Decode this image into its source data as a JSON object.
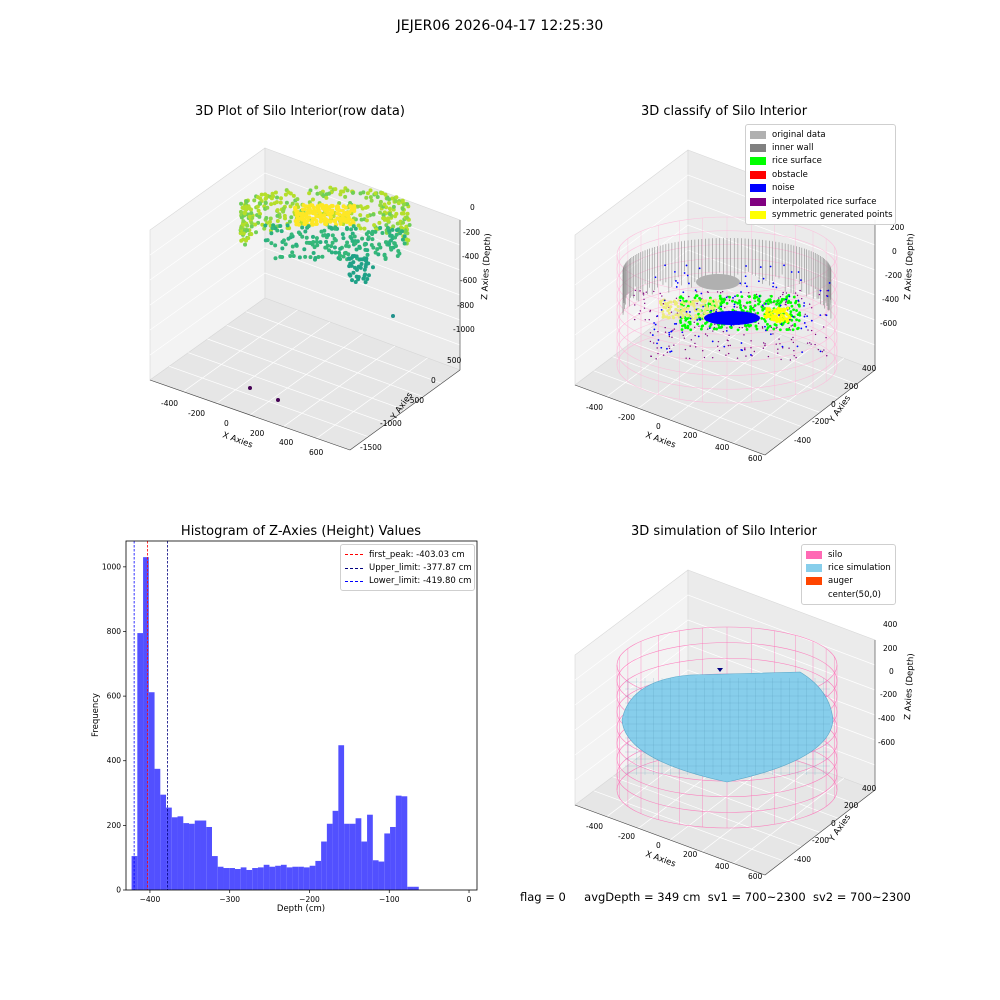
{
  "suptitle": "JEJER06 2026-04-17 12:25:30",
  "panels": {
    "raw": {
      "title": "3D Plot of Silo Interior(row data)",
      "xlabel": "X Axies",
      "ylabel": "Y Axies",
      "zlabel": "Z Axies (Depth)",
      "xticks": [
        "-400",
        "-200",
        "0",
        "200",
        "400",
        "600"
      ],
      "yticks": [
        "-1500",
        "-1000",
        "-500",
        "0",
        "500"
      ],
      "zticks": [
        "-1000",
        "-800",
        "-600",
        "-400",
        "-200",
        "0"
      ]
    },
    "classify": {
      "title": "3D classify of Silo Interior",
      "xlabel": "X Axies",
      "ylabel": "Y Axies",
      "zlabel": "Z Axies (Depth)",
      "xticks": [
        "-400",
        "-200",
        "0",
        "200",
        "400",
        "600"
      ],
      "yticks": [
        "-400",
        "-200",
        "0",
        "200",
        "400"
      ],
      "zticks": [
        "-600",
        "-400",
        "-200",
        "0",
        "200"
      ],
      "legend": [
        {
          "label": "original data",
          "color": "#b0b0b0"
        },
        {
          "label": "inner wall",
          "color": "#808080"
        },
        {
          "label": "rice surface",
          "color": "#00ff00"
        },
        {
          "label": "obstacle",
          "color": "#ff0000"
        },
        {
          "label": "noise",
          "color": "#0000ff"
        },
        {
          "label": "interpolated rice surface",
          "color": "#800080"
        },
        {
          "label": "symmetric generated points",
          "color": "#ffff00"
        }
      ]
    },
    "simulation": {
      "title": "3D simulation of Silo Interior",
      "xlabel": "X Axies",
      "ylabel": "Y Axies",
      "zlabel": "Z Axies (Depth)",
      "xticks": [
        "-400",
        "-200",
        "0",
        "200",
        "400",
        "600"
      ],
      "yticks": [
        "-400",
        "-200",
        "0",
        "200",
        "400"
      ],
      "zticks": [
        "-600",
        "-400",
        "-200",
        "0",
        "200",
        "400"
      ],
      "legend": [
        {
          "label": "silo",
          "color": "#ff69b4"
        },
        {
          "label": "rice simulation",
          "color": "#87ceeb"
        },
        {
          "label": "auger",
          "color": "#ff4500"
        },
        {
          "label": "center(50,0)",
          "color": ""
        }
      ]
    }
  },
  "colors": {
    "hist_bar": "#4f4cff",
    "first_peak": "#ff0000",
    "upper": "#000080",
    "lower": "#0000ff",
    "silo": "#ff69b4",
    "rice": "#87ceeb"
  },
  "chart_data": {
    "type": "bar",
    "title": "Histogram of Z-Axies (Height) Values",
    "xlabel": "Depth (cm)",
    "ylabel": "Frequency",
    "xlim": [
      -430,
      10
    ],
    "ylim": [
      0,
      1080
    ],
    "xticks": [
      -400,
      -300,
      -200,
      -100,
      0
    ],
    "yticks": [
      0,
      200,
      400,
      600,
      800,
      1000
    ],
    "bin_start": -423,
    "bin_width": 7.2,
    "values": [
      105,
      795,
      1030,
      612,
      375,
      295,
      255,
      225,
      228,
      207,
      205,
      215,
      215,
      195,
      105,
      72,
      68,
      68,
      65,
      70,
      62,
      68,
      70,
      78,
      72,
      75,
      78,
      70,
      72,
      72,
      70,
      75,
      90,
      150,
      205,
      245,
      448,
      205,
      205,
      222,
      150,
      233,
      92,
      88,
      175,
      195,
      292,
      290,
      10,
      10
    ],
    "lines": [
      {
        "name": "first_peak: -403.03 cm",
        "x": -403.03
      },
      {
        "name": "Upper_limit: -377.87 cm",
        "x": -377.87
      },
      {
        "name": "Lower_limit: -419.80 cm",
        "x": -419.8
      }
    ],
    "legend_position": "upper right"
  },
  "status": {
    "flag": "flag = 0",
    "avg": "avgDepth = 349 cm",
    "sv1": "sv1 = 700~2300",
    "sv2": "sv2 = 700~2300"
  }
}
